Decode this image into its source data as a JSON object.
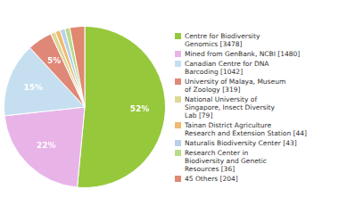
{
  "chart_data": {
    "type": "pie",
    "categories": [
      "Centre for Biodiversity\nGenomics [3478]",
      "Mined from GenBank, NCBI [1480]",
      "Canadian Centre for DNA\nBarcoding [1042]",
      "University of Malaya, Museum\nof Zoology [319]",
      "National University of\nSingapore, Insect Diversity\nLab [79]",
      "Tainan District Agriculture\nResearch and Extension Station [44]",
      "Naturalis Biodiversity Center [43]",
      "Research Center in\nBiodiversity and Genetic\nResources [36]",
      "45 Others [204]"
    ],
    "values": [
      52,
      22,
      15,
      5,
      1,
      1,
      1,
      1,
      3
    ],
    "value_labels": [
      "52%",
      "22%",
      "15%",
      "5%",
      null,
      null,
      null,
      null,
      null
    ],
    "colors": [
      "#96c83c",
      "#e8b4e8",
      "#c5dff0",
      "#e08878",
      "#ddd898",
      "#f0b870",
      "#b8d0e8",
      "#b8dc88",
      "#e08870"
    ],
    "data_labels": true,
    "legend": "right"
  }
}
